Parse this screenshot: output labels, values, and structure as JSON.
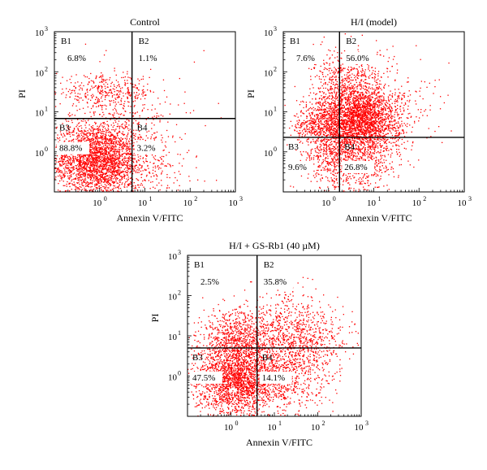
{
  "chart_data": [
    {
      "type": "scatter",
      "title": "Control",
      "xlabel": "Annexin V/FITC",
      "ylabel": "PI",
      "scale": "log",
      "x_ticks": [
        {
          "base": "10",
          "exp": "0"
        },
        {
          "base": "10",
          "exp": "1"
        },
        {
          "base": "10",
          "exp": "2"
        },
        {
          "base": "10",
          "exp": "3"
        }
      ],
      "y_ticks": [
        {
          "base": "10",
          "exp": "0"
        },
        {
          "base": "10",
          "exp": "1"
        },
        {
          "base": "10",
          "exp": "2"
        },
        {
          "base": "10",
          "exp": "3"
        }
      ],
      "quadrants": [
        {
          "label": "B1",
          "percent": "6.8%"
        },
        {
          "label": "B2",
          "percent": "1.1%"
        },
        {
          "label": "B3",
          "percent": "88.8%"
        },
        {
          "label": "B4",
          "percent": "3.2%"
        }
      ],
      "gate": {
        "x": 5.2,
        "y": 6.8
      },
      "point_color": "#ff0000",
      "clusters": [
        {
          "x": 0.9,
          "y": 0.55,
          "sx": 0.55,
          "sy": 0.5,
          "n": 1800
        },
        {
          "x": 0.55,
          "y": 0.9,
          "sx": 0.35,
          "sy": 0.35,
          "n": 500
        },
        {
          "x": 1.8,
          "y": 0.7,
          "sx": 0.5,
          "sy": 0.55,
          "n": 500
        },
        {
          "x": 1.3,
          "y": 32,
          "sx": 0.55,
          "sy": 0.2,
          "n": 350
        },
        {
          "x": 2.0,
          "y": 2.0,
          "sx": 0.7,
          "sy": 0.8,
          "n": 250
        },
        {
          "x": 15,
          "y": 0.5,
          "sx": 0.55,
          "sy": 0.35,
          "n": 80
        },
        {
          "x": 20,
          "y": 15,
          "sx": 0.7,
          "sy": 0.8,
          "n": 50
        }
      ]
    },
    {
      "type": "scatter",
      "title": "H/I (model)",
      "xlabel": "Annexin V/FITC",
      "ylabel": "PI",
      "scale": "log",
      "x_ticks": [
        {
          "base": "10",
          "exp": "0"
        },
        {
          "base": "10",
          "exp": "1"
        },
        {
          "base": "10",
          "exp": "2"
        },
        {
          "base": "10",
          "exp": "3"
        }
      ],
      "y_ticks": [
        {
          "base": "10",
          "exp": "0"
        },
        {
          "base": "10",
          "exp": "1"
        },
        {
          "base": "10",
          "exp": "2"
        },
        {
          "base": "10",
          "exp": "3"
        }
      ],
      "quadrants": [
        {
          "label": "B1",
          "percent": "7.6%"
        },
        {
          "label": "B2",
          "percent": "56.0%"
        },
        {
          "label": "B3",
          "percent": "9.6%"
        },
        {
          "label": "B4",
          "percent": "26.8%"
        }
      ],
      "gate": {
        "x": 1.75,
        "y": 2.3
      },
      "point_color": "#ff0000",
      "clusters": [
        {
          "x": 5,
          "y": 6,
          "sx": 0.45,
          "sy": 0.4,
          "n": 2200
        },
        {
          "x": 3,
          "y": 30,
          "sx": 0.4,
          "sy": 0.55,
          "n": 900
        },
        {
          "x": 0.7,
          "y": 5,
          "sx": 0.3,
          "sy": 0.25,
          "n": 500
        },
        {
          "x": 4,
          "y": 0.6,
          "sx": 0.45,
          "sy": 0.4,
          "n": 700
        },
        {
          "x": 0.9,
          "y": 0.7,
          "sx": 0.3,
          "sy": 0.3,
          "n": 200
        },
        {
          "x": 30,
          "y": 15,
          "sx": 0.6,
          "sy": 0.6,
          "n": 150
        }
      ]
    },
    {
      "type": "scatter",
      "title": "H/I + GS-Rb1 (40 µM)",
      "xlabel": "Annexin V/FITC",
      "ylabel": "PI",
      "scale": "log",
      "x_ticks": [
        {
          "base": "10",
          "exp": "0"
        },
        {
          "base": "10",
          "exp": "1"
        },
        {
          "base": "10",
          "exp": "2"
        },
        {
          "base": "10",
          "exp": "3"
        }
      ],
      "y_ticks": [
        {
          "base": "10",
          "exp": "0"
        },
        {
          "base": "10",
          "exp": "1"
        },
        {
          "base": "10",
          "exp": "2"
        },
        {
          "base": "10",
          "exp": "3"
        }
      ],
      "quadrants": [
        {
          "label": "B1",
          "percent": "2.5%"
        },
        {
          "label": "B2",
          "percent": "35.8%"
        },
        {
          "label": "B3",
          "percent": "47.5%"
        },
        {
          "label": "B4",
          "percent": "14.1%"
        }
      ],
      "gate": {
        "x": 4,
        "y": 5
      },
      "point_color": "#ff0000",
      "clusters": [
        {
          "x": 1.3,
          "y": 0.8,
          "sx": 0.45,
          "sy": 0.45,
          "n": 2000
        },
        {
          "x": 1.3,
          "y": 9,
          "sx": 0.4,
          "sy": 0.35,
          "n": 700
        },
        {
          "x": 30,
          "y": 8,
          "sx": 0.6,
          "sy": 0.4,
          "n": 800
        },
        {
          "x": 15,
          "y": 0.8,
          "sx": 0.55,
          "sy": 0.45,
          "n": 600
        },
        {
          "x": 20,
          "y": 40,
          "sx": 0.55,
          "sy": 0.4,
          "n": 150
        }
      ]
    }
  ]
}
